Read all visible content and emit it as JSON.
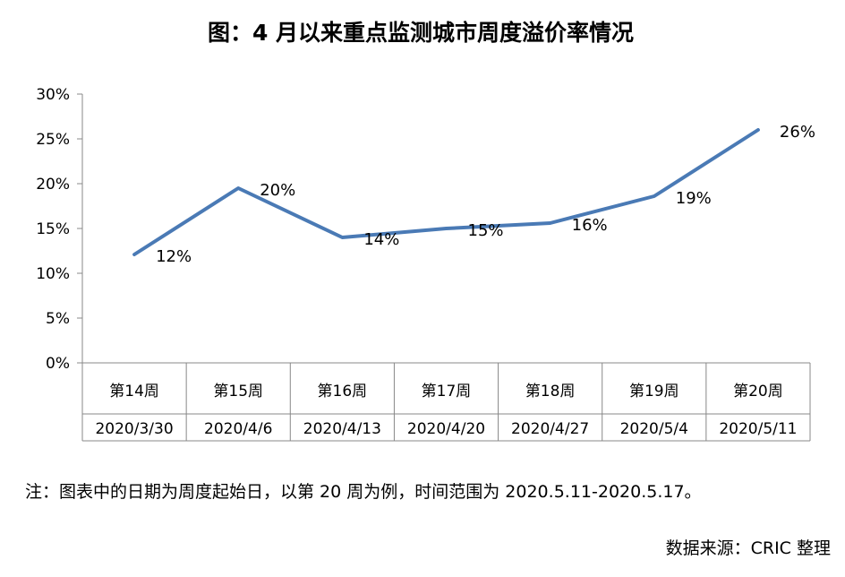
{
  "chart_data": {
    "type": "line",
    "title": "图：4 月以来重点监测城市周度溢价率情况",
    "categories": [
      {
        "week": "第14周",
        "date": "2020/3/30"
      },
      {
        "week": "第15周",
        "date": "2020/4/6"
      },
      {
        "week": "第16周",
        "date": "2020/4/13"
      },
      {
        "week": "第17周",
        "date": "2020/4/20"
      },
      {
        "week": "第18周",
        "date": "2020/4/27"
      },
      {
        "week": "第19周",
        "date": "2020/5/4"
      },
      {
        "week": "第20周",
        "date": "2020/5/11"
      }
    ],
    "values": [
      12.1,
      19.5,
      14.0,
      15.0,
      15.6,
      18.6,
      26.0
    ],
    "data_labels": [
      "12%",
      "20%",
      "14%",
      "15%",
      "16%",
      "19%",
      "26%"
    ],
    "yticks": [
      "0%",
      "5%",
      "10%",
      "15%",
      "20%",
      "25%",
      "30%"
    ],
    "ylim": [
      0,
      30
    ],
    "grid": false,
    "line_color": "#4a7ab5"
  },
  "note": "注：图表中的日期为周度起始日，以第 20 周为例，时间范围为 2020.5.11-2020.5.17。",
  "source": "数据来源：CRIC 整理"
}
